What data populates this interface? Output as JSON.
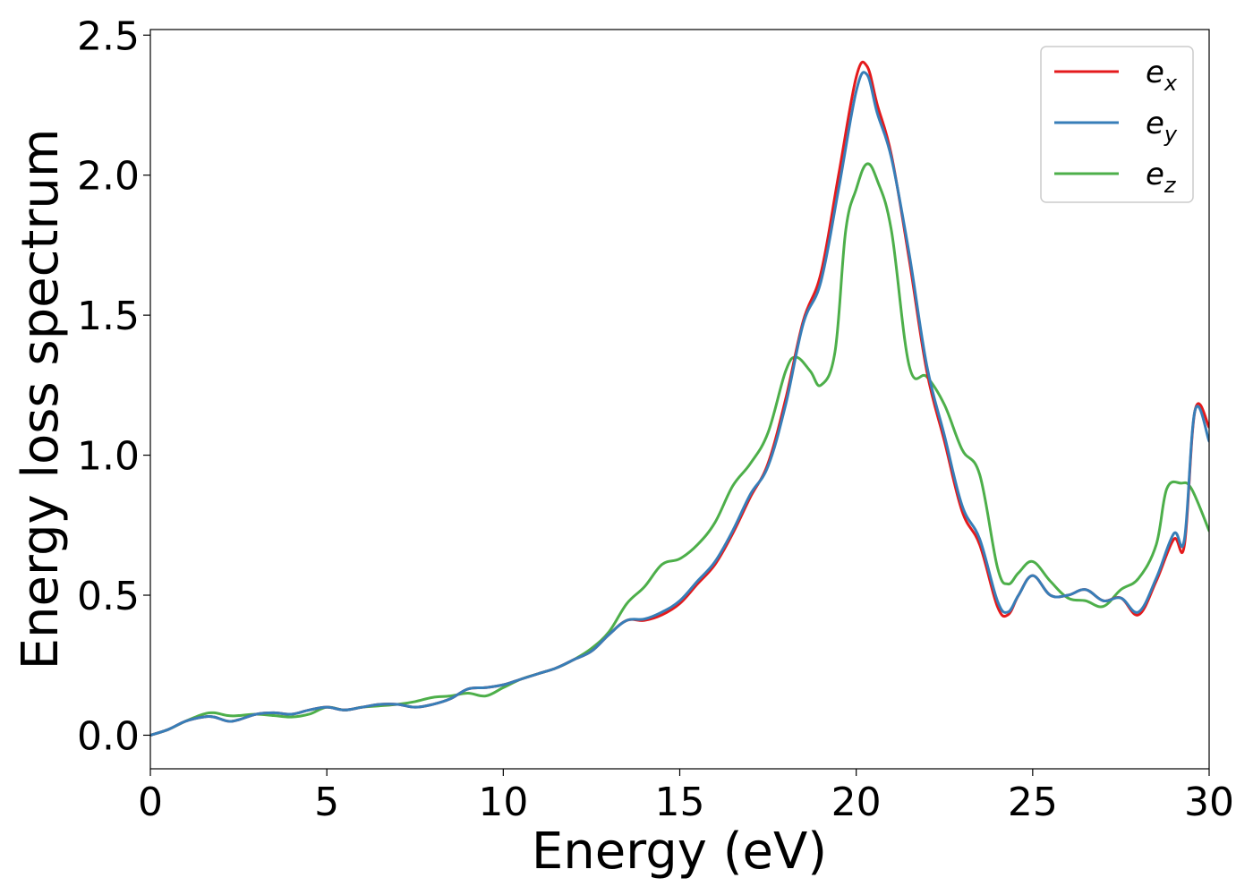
{
  "chart_data": {
    "type": "line",
    "title": "",
    "xlabel": "Energy (eV)",
    "ylabel": "Energy loss spectrum",
    "xlim": [
      0,
      30
    ],
    "ylim": [
      -0.12,
      2.52
    ],
    "xticks": [
      0,
      5,
      10,
      15,
      20,
      25,
      30
    ],
    "xtick_labels": [
      "0",
      "5",
      "10",
      "15",
      "20",
      "25",
      "30"
    ],
    "yticks": [
      0.0,
      0.5,
      1.0,
      1.5,
      2.0,
      2.5
    ],
    "ytick_labels": [
      "0.0",
      "0.5",
      "1.0",
      "1.5",
      "2.0",
      "2.5"
    ],
    "grid": false,
    "legend_position": "top-right",
    "series": [
      {
        "name": "e_x",
        "legend_base": "e",
        "legend_sub": "x",
        "color": "#e41a1c",
        "x": [
          0,
          0.5,
          1,
          1.5,
          1.8,
          2.2,
          2.5,
          3,
          3.5,
          4,
          4.5,
          5,
          5.5,
          6,
          6.5,
          7,
          7.5,
          8,
          8.5,
          9,
          9.5,
          10,
          10.5,
          11,
          11.5,
          12,
          12.5,
          13,
          13.5,
          14,
          14.5,
          15,
          15.5,
          16,
          16.5,
          17,
          17.5,
          18,
          18.5,
          19,
          19.5,
          20,
          20.3,
          20.6,
          21,
          21.5,
          22,
          22.5,
          23,
          23.5,
          24,
          24.3,
          24.6,
          25,
          25.5,
          26,
          26.5,
          27,
          27.5,
          28,
          28.5,
          29,
          29.3,
          29.6,
          30
        ],
        "y": [
          0.0,
          0.02,
          0.05,
          0.065,
          0.065,
          0.05,
          0.055,
          0.075,
          0.08,
          0.075,
          0.09,
          0.1,
          0.09,
          0.1,
          0.11,
          0.11,
          0.1,
          0.11,
          0.13,
          0.165,
          0.17,
          0.18,
          0.2,
          0.22,
          0.24,
          0.27,
          0.3,
          0.36,
          0.41,
          0.41,
          0.43,
          0.47,
          0.54,
          0.61,
          0.72,
          0.85,
          0.97,
          1.2,
          1.48,
          1.65,
          2.0,
          2.35,
          2.39,
          2.25,
          2.07,
          1.7,
          1.3,
          1.05,
          0.8,
          0.68,
          0.46,
          0.43,
          0.5,
          0.57,
          0.5,
          0.5,
          0.52,
          0.48,
          0.49,
          0.43,
          0.55,
          0.7,
          0.68,
          1.16,
          1.1
        ]
      },
      {
        "name": "e_y",
        "legend_base": "e",
        "legend_sub": "y",
        "color": "#377eb8",
        "x": [
          0,
          0.5,
          1,
          1.5,
          1.8,
          2.2,
          2.5,
          3,
          3.5,
          4,
          4.5,
          5,
          5.5,
          6,
          6.5,
          7,
          7.5,
          8,
          8.5,
          9,
          9.5,
          10,
          10.5,
          11,
          11.5,
          12,
          12.5,
          13,
          13.5,
          14,
          14.5,
          15,
          15.5,
          16,
          16.5,
          17,
          17.5,
          18,
          18.5,
          19,
          19.5,
          20,
          20.3,
          20.6,
          21,
          21.5,
          22,
          22.5,
          23,
          23.5,
          24,
          24.3,
          24.6,
          25,
          25.5,
          26,
          26.5,
          27,
          27.5,
          28,
          28.5,
          29,
          29.3,
          29.6,
          30
        ],
        "y": [
          0.0,
          0.02,
          0.05,
          0.065,
          0.065,
          0.05,
          0.055,
          0.075,
          0.08,
          0.075,
          0.09,
          0.1,
          0.09,
          0.1,
          0.11,
          0.11,
          0.1,
          0.11,
          0.13,
          0.165,
          0.17,
          0.18,
          0.2,
          0.22,
          0.24,
          0.27,
          0.3,
          0.36,
          0.41,
          0.415,
          0.44,
          0.48,
          0.55,
          0.62,
          0.73,
          0.86,
          0.96,
          1.18,
          1.47,
          1.62,
          1.95,
          2.3,
          2.36,
          2.22,
          2.06,
          1.72,
          1.32,
          1.07,
          0.82,
          0.7,
          0.48,
          0.44,
          0.5,
          0.57,
          0.5,
          0.5,
          0.52,
          0.48,
          0.49,
          0.44,
          0.56,
          0.72,
          0.7,
          1.16,
          1.05
        ]
      },
      {
        "name": "e_z",
        "legend_base": "e",
        "legend_sub": "z",
        "color": "#4daf4a",
        "x": [
          0,
          0.5,
          1,
          1.5,
          1.8,
          2.2,
          2.5,
          3,
          3.5,
          4,
          4.5,
          5,
          5.5,
          6,
          6.5,
          7,
          7.5,
          8,
          8.5,
          9,
          9.5,
          10,
          10.5,
          11,
          11.5,
          12,
          12.5,
          13,
          13.5,
          14,
          14.5,
          15,
          15.5,
          16,
          16.5,
          17,
          17.5,
          18,
          18.3,
          18.7,
          19,
          19.4,
          19.7,
          20,
          20.3,
          20.6,
          21,
          21.5,
          22,
          22.5,
          23,
          23.5,
          24,
          24.3,
          24.6,
          25,
          25.5,
          26,
          26.5,
          27,
          27.5,
          28,
          28.5,
          28.8,
          29.2,
          29.5,
          30
        ],
        "y": [
          0.0,
          0.02,
          0.05,
          0.075,
          0.08,
          0.07,
          0.07,
          0.075,
          0.07,
          0.065,
          0.075,
          0.1,
          0.09,
          0.1,
          0.105,
          0.11,
          0.12,
          0.135,
          0.14,
          0.15,
          0.14,
          0.17,
          0.2,
          0.22,
          0.24,
          0.27,
          0.31,
          0.37,
          0.47,
          0.53,
          0.61,
          0.63,
          0.68,
          0.76,
          0.89,
          0.97,
          1.08,
          1.3,
          1.35,
          1.3,
          1.25,
          1.37,
          1.8,
          1.95,
          2.04,
          1.98,
          1.8,
          1.32,
          1.28,
          1.18,
          1.02,
          0.93,
          0.6,
          0.54,
          0.58,
          0.62,
          0.55,
          0.49,
          0.48,
          0.46,
          0.52,
          0.56,
          0.68,
          0.88,
          0.9,
          0.88,
          0.73
        ]
      }
    ]
  }
}
